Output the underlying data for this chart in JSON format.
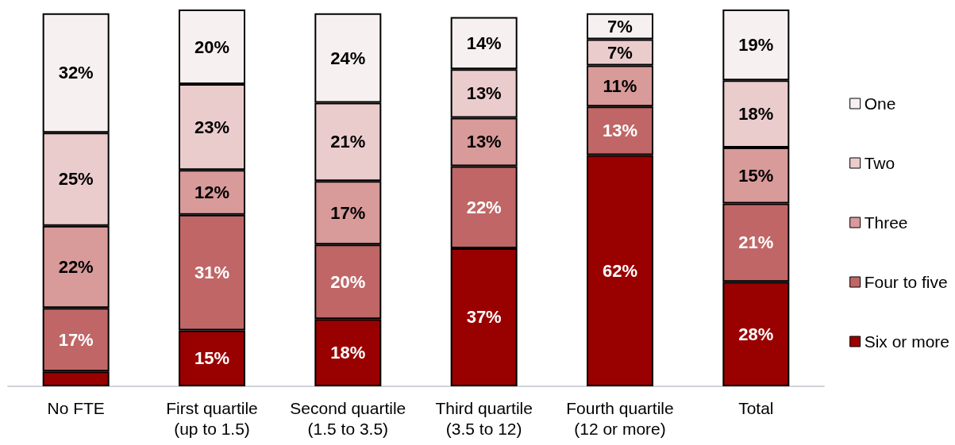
{
  "chart_data": {
    "type": "bar",
    "stacked": true,
    "legend": "right",
    "categories": [
      "No FTE",
      "First quartile\n(up to 1.5)",
      "Second quartile\n(1.5 to 3.5)",
      "Third quartile\n(3.5 to 12)",
      "Fourth quartile\n(12 or more)",
      "Total"
    ],
    "ylim": [
      0,
      101
    ],
    "series": [
      {
        "name": "Six or more",
        "color": "#990000",
        "values": [
          4,
          15,
          18,
          37,
          62,
          28
        ],
        "value_labels": [
          null,
          "15%",
          "18%",
          "37%",
          "62%",
          "28%"
        ]
      },
      {
        "name": "Four to five",
        "color": "#c06666",
        "values": [
          17,
          31,
          20,
          22,
          13,
          21
        ],
        "value_labels": [
          "17%",
          "31%",
          "20%",
          "22%",
          "13%",
          "21%"
        ]
      },
      {
        "name": "Three",
        "color": "#d99a9a",
        "values": [
          22,
          12,
          17,
          13,
          11,
          15
        ],
        "value_labels": [
          "22%",
          "12%",
          "17%",
          "13%",
          "11%",
          "15%"
        ]
      },
      {
        "name": "Two",
        "color": "#ebcccc",
        "values": [
          25,
          23,
          21,
          13,
          7,
          18
        ],
        "value_labels": [
          "25%",
          "23%",
          "21%",
          "13%",
          "7%",
          "18%"
        ]
      },
      {
        "name": "One",
        "color": "#f7f0f0",
        "values": [
          32,
          20,
          24,
          14,
          7,
          19
        ],
        "value_labels": [
          "32%",
          "20%",
          "24%",
          "14%",
          "7%",
          "19%"
        ]
      }
    ]
  }
}
